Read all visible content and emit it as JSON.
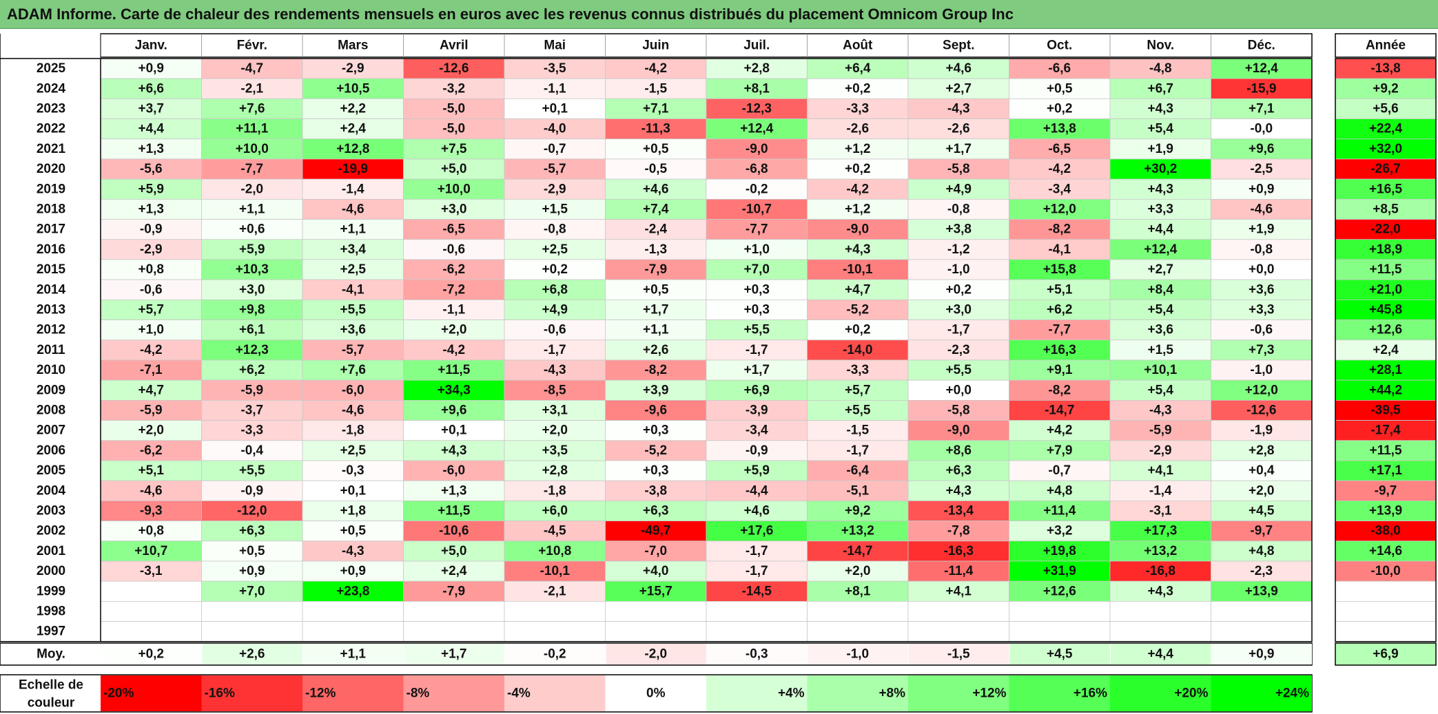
{
  "title": "ADAM Informe. Carte de chaleur des rendements mensuels en euros avec les revenus connus distribués du placement Omnicom Group Inc",
  "chart_data": {
    "type": "heatmap",
    "columns": [
      "Janv.",
      "Févr.",
      "Mars",
      "Avril",
      "Mai",
      "Juin",
      "Juil.",
      "Août",
      "Sept.",
      "Oct.",
      "Nov.",
      "Déc."
    ],
    "year_header": "Année",
    "rows": [
      {
        "year": "2025",
        "values": [
          "+0,9",
          "-4,7",
          "-2,9",
          "-12,6",
          "-3,5",
          "-4,2",
          "+2,8",
          "+6,4",
          "+4,6",
          "-6,6",
          "-4,8",
          "+12,4"
        ],
        "annual": "-13,8"
      },
      {
        "year": "2024",
        "values": [
          "+6,6",
          "-2,1",
          "+10,5",
          "-3,2",
          "-1,1",
          "-1,5",
          "+8,1",
          "+0,2",
          "+2,7",
          "+0,5",
          "+6,7",
          "-15,9"
        ],
        "annual": "+9,2"
      },
      {
        "year": "2023",
        "values": [
          "+3,7",
          "+7,6",
          "+2,2",
          "-5,0",
          "+0,1",
          "+7,1",
          "-12,3",
          "-3,3",
          "-4,3",
          "+0,2",
          "+4,3",
          "+7,1"
        ],
        "annual": "+5,6"
      },
      {
        "year": "2022",
        "values": [
          "+4,4",
          "+11,1",
          "+2,4",
          "-5,0",
          "-4,0",
          "-11,3",
          "+12,4",
          "-2,6",
          "-2,6",
          "+13,8",
          "+5,4",
          "-0,0"
        ],
        "annual": "+22,4"
      },
      {
        "year": "2021",
        "values": [
          "+1,3",
          "+10,0",
          "+12,8",
          "+7,5",
          "-0,7",
          "+0,5",
          "-9,0",
          "+1,2",
          "+1,7",
          "-6,5",
          "+1,9",
          "+9,6"
        ],
        "annual": "+32,0"
      },
      {
        "year": "2020",
        "values": [
          "-5,6",
          "-7,7",
          "-19,9",
          "+5,0",
          "-5,7",
          "-0,5",
          "-6,8",
          "+0,2",
          "-5,8",
          "-4,2",
          "+30,2",
          "-2,5"
        ],
        "annual": "-26,7"
      },
      {
        "year": "2019",
        "values": [
          "+5,9",
          "-2,0",
          "-1,4",
          "+10,0",
          "-2,9",
          "+4,6",
          "-0,2",
          "-4,2",
          "+4,9",
          "-3,4",
          "+4,3",
          "+0,9"
        ],
        "annual": "+16,5"
      },
      {
        "year": "2018",
        "values": [
          "+1,3",
          "+1,1",
          "-4,6",
          "+3,0",
          "+1,5",
          "+7,4",
          "-10,7",
          "+1,2",
          "-0,8",
          "+12,0",
          "+3,3",
          "-4,6"
        ],
        "annual": "+8,5"
      },
      {
        "year": "2017",
        "values": [
          "-0,9",
          "+0,6",
          "+1,1",
          "-6,5",
          "-0,8",
          "-2,4",
          "-7,7",
          "-9,0",
          "+3,8",
          "-8,2",
          "+4,4",
          "+1,9"
        ],
        "annual": "-22,0"
      },
      {
        "year": "2016",
        "values": [
          "-2,9",
          "+5,9",
          "+3,4",
          "-0,6",
          "+2,5",
          "-1,3",
          "+1,0",
          "+4,3",
          "-1,2",
          "-4,1",
          "+12,4",
          "-0,8"
        ],
        "annual": "+18,9"
      },
      {
        "year": "2015",
        "values": [
          "+0,8",
          "+10,3",
          "+2,5",
          "-6,2",
          "+0,2",
          "-7,9",
          "+7,0",
          "-10,1",
          "-1,0",
          "+15,8",
          "+2,7",
          "+0,0"
        ],
        "annual": "+11,5"
      },
      {
        "year": "2014",
        "values": [
          "-0,6",
          "+3,0",
          "-4,1",
          "-7,2",
          "+6,8",
          "+0,5",
          "+0,3",
          "+4,7",
          "+0,2",
          "+5,1",
          "+8,4",
          "+3,6"
        ],
        "annual": "+21,0"
      },
      {
        "year": "2013",
        "values": [
          "+5,7",
          "+9,8",
          "+5,5",
          "-1,1",
          "+4,9",
          "+1,7",
          "+0,3",
          "-5,2",
          "+3,0",
          "+6,2",
          "+5,4",
          "+3,3"
        ],
        "annual": "+45,8"
      },
      {
        "year": "2012",
        "values": [
          "+1,0",
          "+6,1",
          "+3,6",
          "+2,0",
          "-0,6",
          "+1,1",
          "+5,5",
          "+0,2",
          "-1,7",
          "-7,7",
          "+3,6",
          "-0,6"
        ],
        "annual": "+12,6"
      },
      {
        "year": "2011",
        "values": [
          "-4,2",
          "+12,3",
          "-5,7",
          "-4,2",
          "-1,7",
          "+2,6",
          "-1,7",
          "-14,0",
          "-2,3",
          "+16,3",
          "+1,5",
          "+7,3"
        ],
        "annual": "+2,4"
      },
      {
        "year": "2010",
        "values": [
          "-7,1",
          "+6,2",
          "+7,6",
          "+11,5",
          "-4,3",
          "-8,2",
          "+1,7",
          "-3,3",
          "+5,5",
          "+9,1",
          "+10,1",
          "-1,0"
        ],
        "annual": "+28,1"
      },
      {
        "year": "2009",
        "values": [
          "+4,7",
          "-5,9",
          "-6,0",
          "+34,3",
          "-8,5",
          "+3,9",
          "+6,9",
          "+5,7",
          "+0,0",
          "-8,2",
          "+5,4",
          "+12,0"
        ],
        "annual": "+44,2"
      },
      {
        "year": "2008",
        "values": [
          "-5,9",
          "-3,7",
          "-4,6",
          "+9,6",
          "+3,1",
          "-9,6",
          "-3,9",
          "+5,5",
          "-5,8",
          "-14,7",
          "-4,3",
          "-12,6"
        ],
        "annual": "-39,5"
      },
      {
        "year": "2007",
        "values": [
          "+2,0",
          "-3,3",
          "-1,8",
          "+0,1",
          "+2,0",
          "+0,3",
          "-3,4",
          "-1,5",
          "-9,0",
          "+4,2",
          "-5,9",
          "-1,9"
        ],
        "annual": "-17,4"
      },
      {
        "year": "2006",
        "values": [
          "-6,2",
          "-0,4",
          "+2,5",
          "+4,3",
          "+3,5",
          "-5,2",
          "-0,9",
          "-1,7",
          "+8,6",
          "+7,9",
          "-2,9",
          "+2,8"
        ],
        "annual": "+11,5"
      },
      {
        "year": "2005",
        "values": [
          "+5,1",
          "+5,5",
          "-0,3",
          "-6,0",
          "+2,8",
          "+0,3",
          "+5,9",
          "-6,4",
          "+6,3",
          "-0,7",
          "+4,1",
          "+0,4"
        ],
        "annual": "+17,1"
      },
      {
        "year": "2004",
        "values": [
          "-4,6",
          "-0,9",
          "+0,1",
          "+1,3",
          "-1,8",
          "-3,8",
          "-4,4",
          "-5,1",
          "+4,3",
          "+4,8",
          "-1,4",
          "+2,0"
        ],
        "annual": "-9,7"
      },
      {
        "year": "2003",
        "values": [
          "-9,3",
          "-12,0",
          "+1,8",
          "+11,5",
          "+6,0",
          "+6,3",
          "+4,6",
          "+9,2",
          "-13,4",
          "+11,4",
          "-3,1",
          "+4,5"
        ],
        "annual": "+13,9"
      },
      {
        "year": "2002",
        "values": [
          "+0,8",
          "+6,3",
          "+0,5",
          "-10,6",
          "-4,5",
          "-49,7",
          "+17,6",
          "+13,2",
          "-7,8",
          "+3,2",
          "+17,3",
          "-9,7"
        ],
        "annual": "-38,0"
      },
      {
        "year": "2001",
        "values": [
          "+10,7",
          "+0,5",
          "-4,3",
          "+5,0",
          "+10,8",
          "-7,0",
          "-1,7",
          "-14,7",
          "-16,3",
          "+19,8",
          "+13,2",
          "+4,8"
        ],
        "annual": "+14,6"
      },
      {
        "year": "2000",
        "values": [
          "-3,1",
          "+0,9",
          "+0,9",
          "+2,4",
          "-10,1",
          "+4,0",
          "-1,7",
          "+2,0",
          "-11,4",
          "+31,9",
          "-16,8",
          "-2,3"
        ],
        "annual": "-10,0"
      },
      {
        "year": "1999",
        "values": [
          "",
          "+7,0",
          "+23,8",
          "-7,9",
          "-2,1",
          "+15,7",
          "-14,5",
          "+8,1",
          "+4,1",
          "+12,6",
          "+4,3",
          "+13,9"
        ],
        "annual": ""
      },
      {
        "year": "1998",
        "values": [
          "",
          "",
          "",
          "",
          "",
          "",
          "",
          "",
          "",
          "",
          "",
          ""
        ],
        "annual": ""
      },
      {
        "year": "1997",
        "values": [
          "",
          "",
          "",
          "",
          "",
          "",
          "",
          "",
          "",
          "",
          "",
          ""
        ],
        "annual": ""
      }
    ],
    "average": {
      "label": "Moy.",
      "values": [
        "+0,2",
        "+2,6",
        "+1,1",
        "+1,7",
        "-0,2",
        "-2,0",
        "-0,3",
        "-1,0",
        "-1,5",
        "+4,5",
        "+4,4",
        "+0,9"
      ],
      "annual": "+6,9"
    },
    "color_scale": {
      "label_line1": "Echelle de",
      "label_line2": "couleur",
      "steps": [
        "-20%",
        "-16%",
        "-12%",
        "-8%",
        "-4%",
        "0%",
        "+4%",
        "+8%",
        "+12%",
        "+16%",
        "+20%",
        "+24%"
      ],
      "step_values": [
        -20,
        -16,
        -12,
        -8,
        -4,
        0,
        4,
        8,
        12,
        16,
        20,
        24
      ]
    },
    "colors": {
      "negative": "#ff0000",
      "positive": "#00ff00",
      "neutral": "#ffffff",
      "title_bar": "#7fcb7f"
    }
  }
}
